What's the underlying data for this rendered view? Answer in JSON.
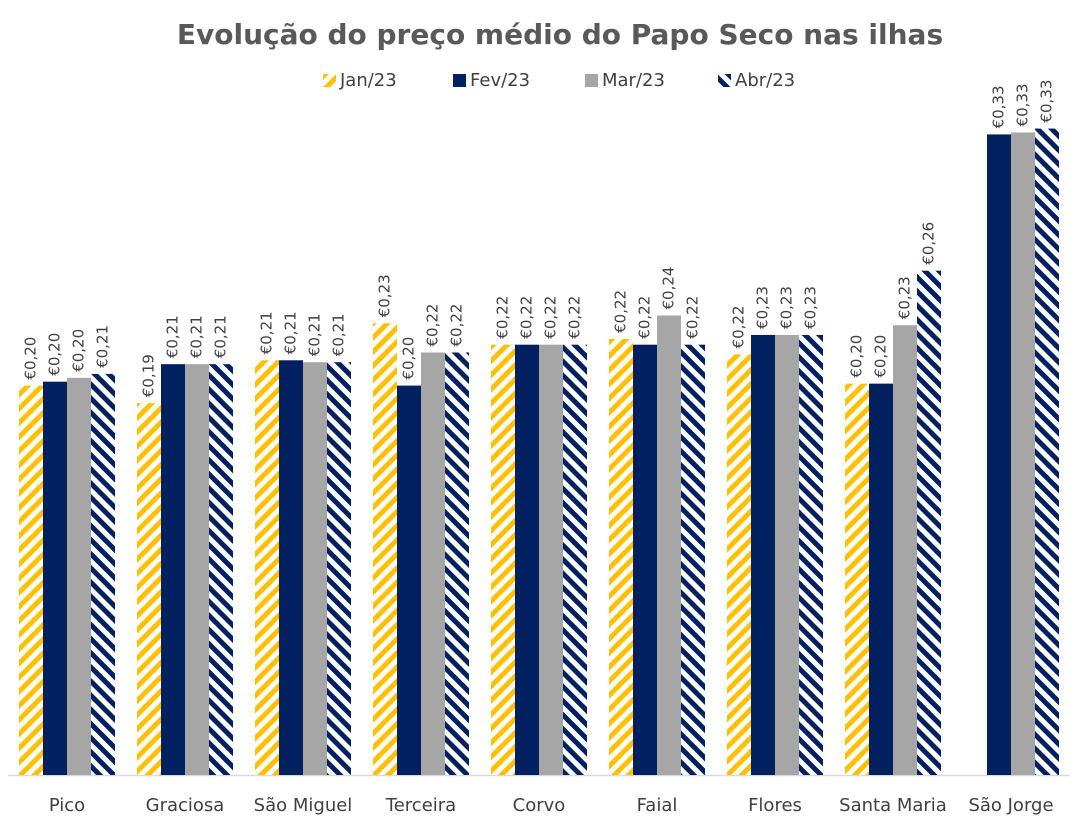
{
  "chart_data": {
    "type": "bar",
    "title": "Evolução do preço médio do Papo Seco nas ilhas",
    "categories": [
      "Pico",
      "Graciosa",
      "São Miguel",
      "Terceira",
      "Corvo",
      "Faial",
      "Flores",
      "Santa Maria",
      "São Jorge"
    ],
    "series": [
      {
        "name": "Jan/23",
        "color": "#ffc000",
        "pattern": "stripes-up",
        "values": [
          0.2,
          0.191,
          0.213,
          0.232,
          0.221,
          0.224,
          0.216,
          0.201,
          null
        ],
        "value_labels": [
          "€0,20",
          "€0,19",
          "€0,21",
          "€0,23",
          "€0,22",
          "€0,22",
          "€0,22",
          "€0,20",
          null
        ]
      },
      {
        "name": "Fev/23",
        "color": "#002060",
        "pattern": "solid",
        "values": [
          0.202,
          0.211,
          0.213,
          0.2,
          0.221,
          0.221,
          0.226,
          0.201,
          0.329
        ],
        "value_labels": [
          "€0,20",
          "€0,21",
          "€0,21",
          "€0,20",
          "€0,22",
          "€0,22",
          "€0,23",
          "€0,20",
          "€0,33"
        ]
      },
      {
        "name": "Mar/23",
        "color": "#a6a6a6",
        "pattern": "solid",
        "values": [
          0.204,
          0.211,
          0.212,
          0.217,
          0.221,
          0.236,
          0.226,
          0.231,
          0.33
        ],
        "value_labels": [
          "€0,20",
          "€0,21",
          "€0,21",
          "€0,22",
          "€0,22",
          "€0,24",
          "€0,23",
          "€0,23",
          "€0,33"
        ]
      },
      {
        "name": "Abr/23",
        "color": "#002060",
        "pattern": "stripes-down",
        "values": [
          0.206,
          0.211,
          0.212,
          0.217,
          0.221,
          0.221,
          0.226,
          0.259,
          0.332
        ],
        "value_labels": [
          "€0,21",
          "€0,21",
          "€0,21",
          "€0,22",
          "€0,22",
          "€0,22",
          "€0,23",
          "€0,26",
          "€0,33"
        ]
      }
    ],
    "ylim": [
      0,
      0.34
    ],
    "legend": "top"
  }
}
